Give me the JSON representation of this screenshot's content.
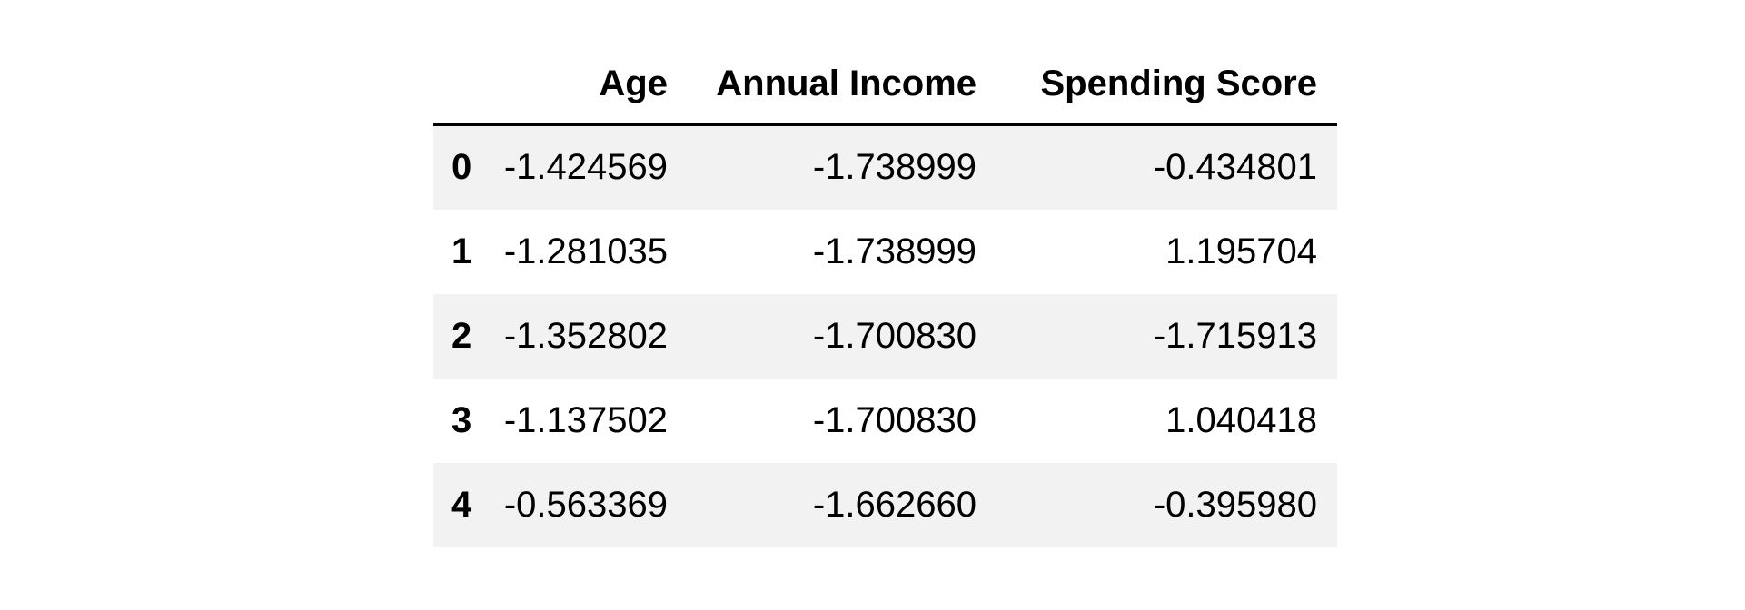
{
  "dataframe": {
    "index_header": "",
    "columns": [
      "Age",
      "Annual Income",
      "Spending Score"
    ],
    "rows": [
      {
        "index": "0",
        "values": [
          "-1.424569",
          "-1.738999",
          "-0.434801"
        ]
      },
      {
        "index": "1",
        "values": [
          "-1.281035",
          "-1.738999",
          "1.195704"
        ]
      },
      {
        "index": "2",
        "values": [
          "-1.352802",
          "-1.700830",
          "-1.715913"
        ]
      },
      {
        "index": "3",
        "values": [
          "-1.137502",
          "-1.700830",
          "1.040418"
        ]
      },
      {
        "index": "4",
        "values": [
          "-0.563369",
          "-1.662660",
          "-0.395980"
        ]
      }
    ]
  },
  "colors": {
    "stripe": "#f2f2f2",
    "background": "#ffffff",
    "text": "#000000",
    "header_rule": "#000000"
  }
}
